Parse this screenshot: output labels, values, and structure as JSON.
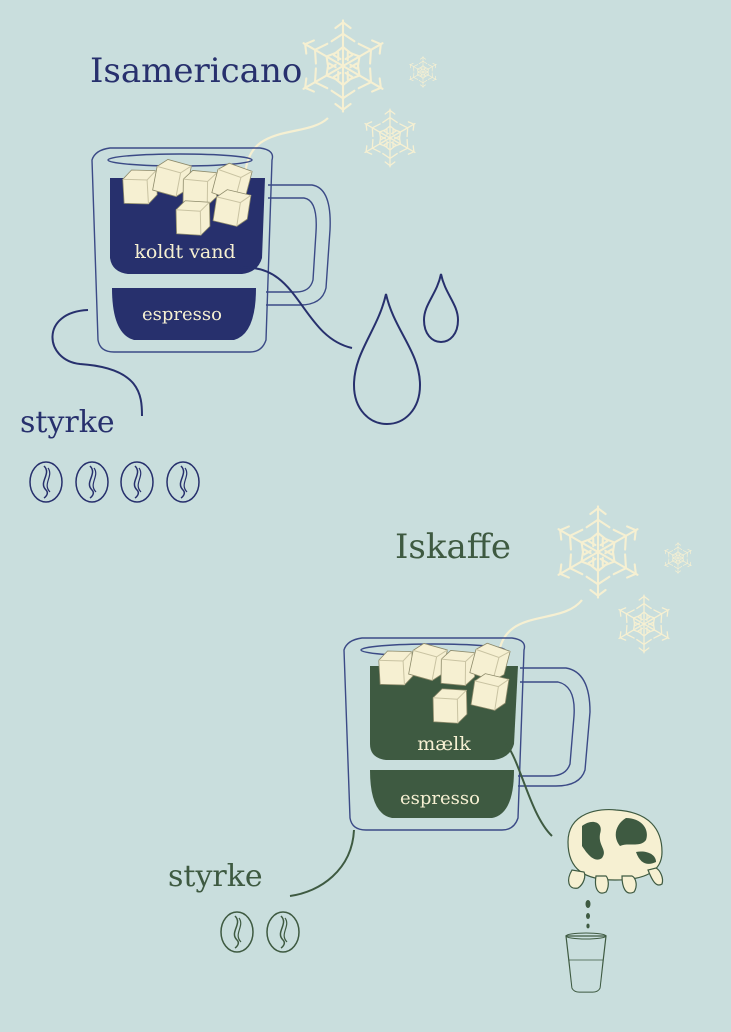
{
  "colors": {
    "background": "#c9dedd",
    "navy": "#27306d",
    "green": "#3e5a41",
    "cream": "#f6f0d2",
    "outline": "#3b4a86"
  },
  "sections": [
    {
      "title": "Isamericano",
      "upper_layer_label": "koldt vand",
      "lower_layer_label": "espresso",
      "strength_label": "styrke",
      "strength_beans": 4,
      "ingredient_icon": "water-drops-icon"
    },
    {
      "title": "Iskaffe",
      "upper_layer_label": "mælk",
      "lower_layer_label": "espresso",
      "strength_label": "styrke",
      "strength_beans": 2,
      "ingredient_icon": "cow-udder-icon"
    }
  ]
}
